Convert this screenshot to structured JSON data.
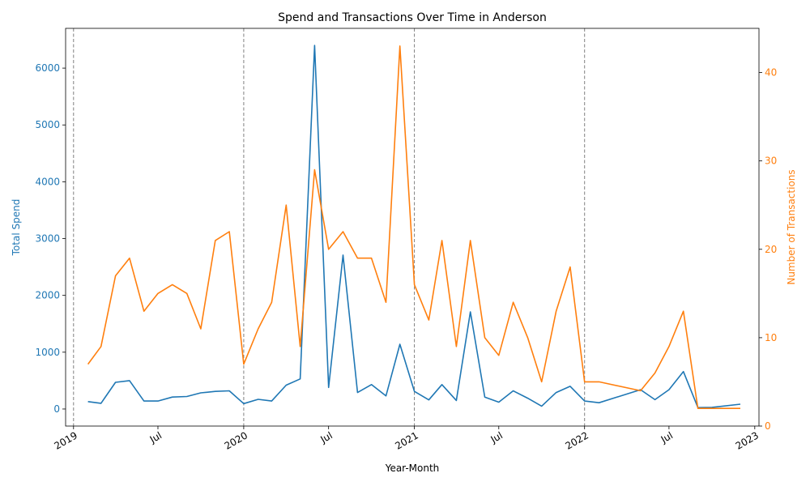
{
  "chart_data": {
    "type": "line",
    "title": "Spend and Transactions Over Time in Anderson",
    "xlabel": "Year-Month",
    "ylabel_left": "Total Spend",
    "ylabel_right": "Number of Transactions",
    "xlim": [
      "2018-12-15",
      "2023-01-10"
    ],
    "ylim_left": [
      -300,
      6700
    ],
    "ylim_right": [
      0,
      45
    ],
    "x_ticks": [
      {
        "date": "2019-01-01",
        "label": "2019"
      },
      {
        "date": "2019-07-01",
        "label": "Jul"
      },
      {
        "date": "2020-01-01",
        "label": "2020"
      },
      {
        "date": "2020-07-01",
        "label": "Jul"
      },
      {
        "date": "2021-01-01",
        "label": "2021"
      },
      {
        "date": "2021-07-01",
        "label": "Jul"
      },
      {
        "date": "2022-01-01",
        "label": "2022"
      },
      {
        "date": "2022-07-01",
        "label": "Jul"
      },
      {
        "date": "2023-01-01",
        "label": "2023"
      }
    ],
    "y_ticks_left": [
      0,
      1000,
      2000,
      3000,
      4000,
      5000,
      6000
    ],
    "y_ticks_right": [
      0,
      10,
      20,
      30,
      40
    ],
    "vlines": [
      "2019-01-01",
      "2020-01-01",
      "2021-01-01",
      "2022-01-01"
    ],
    "colors": {
      "spend": "#1f77b4",
      "transactions": "#ff7f0e",
      "vline": "#808080"
    },
    "series": [
      {
        "axis": "left",
        "points": [
          [
            "2019-02-01",
            130
          ],
          [
            "2019-03-01",
            100
          ],
          [
            "2019-04-01",
            470
          ],
          [
            "2019-05-01",
            500
          ],
          [
            "2019-06-01",
            140
          ],
          [
            "2019-07-01",
            140
          ],
          [
            "2019-08-01",
            210
          ],
          [
            "2019-09-01",
            220
          ],
          [
            "2019-10-01",
            285
          ],
          [
            "2019-11-01",
            310
          ],
          [
            "2019-12-01",
            320
          ],
          [
            "2020-01-01",
            95
          ],
          [
            "2020-02-01",
            170
          ],
          [
            "2020-03-01",
            140
          ],
          [
            "2020-04-01",
            420
          ],
          [
            "2020-05-01",
            530
          ],
          [
            "2020-06-01",
            6400
          ],
          [
            "2020-07-01",
            380
          ],
          [
            "2020-08-01",
            2710
          ],
          [
            "2020-09-01",
            290
          ],
          [
            "2020-10-01",
            430
          ],
          [
            "2020-11-01",
            230
          ],
          [
            "2020-12-01",
            1140
          ],
          [
            "2021-01-01",
            310
          ],
          [
            "2021-02-01",
            160
          ],
          [
            "2021-03-01",
            430
          ],
          [
            "2021-04-01",
            150
          ],
          [
            "2021-05-01",
            1710
          ],
          [
            "2021-06-01",
            210
          ],
          [
            "2021-07-01",
            120
          ],
          [
            "2021-08-01",
            320
          ],
          [
            "2021-09-01",
            190
          ],
          [
            "2021-10-01",
            50
          ],
          [
            "2021-11-01",
            290
          ],
          [
            "2021-12-01",
            400
          ],
          [
            "2022-01-01",
            140
          ],
          [
            "2022-02-01",
            110
          ],
          [
            "2022-05-01",
            340
          ],
          [
            "2022-06-01",
            165
          ],
          [
            "2022-07-01",
            340
          ],
          [
            "2022-08-01",
            660
          ],
          [
            "2022-09-01",
            25
          ],
          [
            "2022-10-01",
            30
          ],
          [
            "2022-12-01",
            85
          ]
        ]
      },
      {
        "axis": "right",
        "points": [
          [
            "2019-02-01",
            7
          ],
          [
            "2019-03-01",
            9
          ],
          [
            "2019-04-01",
            17
          ],
          [
            "2019-05-01",
            19
          ],
          [
            "2019-06-01",
            13
          ],
          [
            "2019-07-01",
            15
          ],
          [
            "2019-08-01",
            16
          ],
          [
            "2019-09-01",
            15
          ],
          [
            "2019-10-01",
            11
          ],
          [
            "2019-11-01",
            21
          ],
          [
            "2019-12-01",
            22
          ],
          [
            "2020-01-01",
            7
          ],
          [
            "2020-02-01",
            11
          ],
          [
            "2020-03-01",
            14
          ],
          [
            "2020-04-01",
            25
          ],
          [
            "2020-05-01",
            9
          ],
          [
            "2020-06-01",
            29
          ],
          [
            "2020-07-01",
            20
          ],
          [
            "2020-08-01",
            22
          ],
          [
            "2020-09-01",
            19
          ],
          [
            "2020-10-01",
            19
          ],
          [
            "2020-11-01",
            14
          ],
          [
            "2020-12-01",
            43
          ],
          [
            "2021-01-01",
            16
          ],
          [
            "2021-02-01",
            12
          ],
          [
            "2021-03-01",
            21
          ],
          [
            "2021-04-01",
            9
          ],
          [
            "2021-05-01",
            21
          ],
          [
            "2021-06-01",
            10
          ],
          [
            "2021-07-01",
            8
          ],
          [
            "2021-08-01",
            14
          ],
          [
            "2021-09-01",
            10
          ],
          [
            "2021-10-01",
            5
          ],
          [
            "2021-11-01",
            13
          ],
          [
            "2021-12-01",
            18
          ],
          [
            "2022-01-01",
            5
          ],
          [
            "2022-02-01",
            5
          ],
          [
            "2022-05-01",
            4
          ],
          [
            "2022-06-01",
            6
          ],
          [
            "2022-07-01",
            9
          ],
          [
            "2022-08-01",
            13
          ],
          [
            "2022-09-01",
            2
          ],
          [
            "2022-10-01",
            2
          ],
          [
            "2022-12-01",
            2
          ]
        ]
      }
    ]
  }
}
